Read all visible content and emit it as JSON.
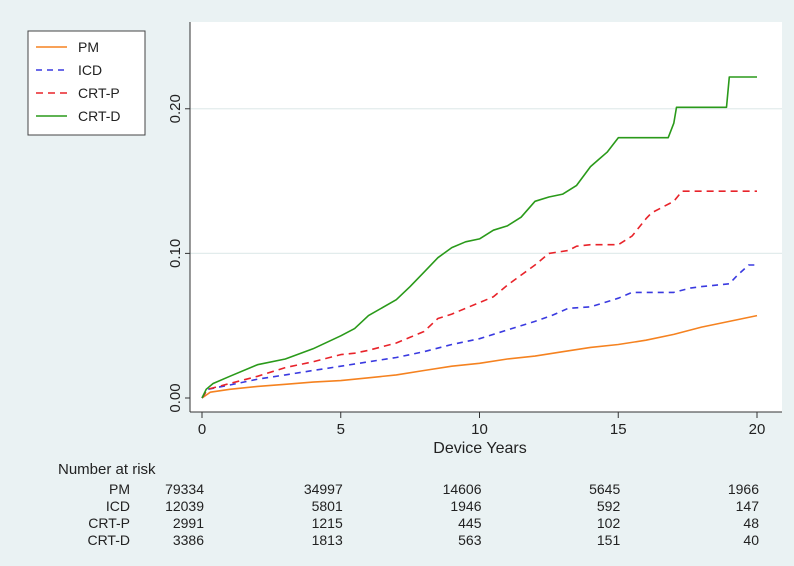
{
  "chart_data": {
    "type": "line",
    "title": "",
    "xlabel": "Device Years",
    "ylabel": "",
    "xlim": [
      0,
      20
    ],
    "ylim": [
      0,
      0.26
    ],
    "x_ticks": [
      0,
      5,
      10,
      15,
      20
    ],
    "x_tick_labels": [
      "0",
      "5",
      "10",
      "15",
      "20"
    ],
    "y_ticks": [
      0.0,
      0.1,
      0.2
    ],
    "y_tick_labels": [
      "0.00",
      "0.10",
      "0.20"
    ],
    "grid": "horizontal",
    "legend_position": "top-left",
    "series": [
      {
        "name": "PM",
        "color": "#f58220",
        "dash": "solid",
        "points": [
          [
            0,
            0
          ],
          [
            0.3,
            0.004
          ],
          [
            1,
            0.006
          ],
          [
            2,
            0.008
          ],
          [
            3,
            0.0095
          ],
          [
            4,
            0.011
          ],
          [
            5,
            0.012
          ],
          [
            6,
            0.014
          ],
          [
            7,
            0.016
          ],
          [
            8,
            0.019
          ],
          [
            9,
            0.022
          ],
          [
            10,
            0.024
          ],
          [
            11,
            0.027
          ],
          [
            12,
            0.029
          ],
          [
            13,
            0.032
          ],
          [
            14,
            0.035
          ],
          [
            15,
            0.037
          ],
          [
            16,
            0.04
          ],
          [
            17,
            0.044
          ],
          [
            18,
            0.049
          ],
          [
            19,
            0.053
          ],
          [
            20,
            0.057
          ]
        ]
      },
      {
        "name": "ICD",
        "color": "#3a3ae0",
        "dash": "6,5",
        "points": [
          [
            0,
            0
          ],
          [
            0.2,
            0.006
          ],
          [
            1,
            0.009
          ],
          [
            2,
            0.013
          ],
          [
            3,
            0.016
          ],
          [
            4,
            0.019
          ],
          [
            5,
            0.022
          ],
          [
            6,
            0.025
          ],
          [
            7,
            0.028
          ],
          [
            8,
            0.032
          ],
          [
            9,
            0.037
          ],
          [
            10,
            0.041
          ],
          [
            11,
            0.047
          ],
          [
            12,
            0.053
          ],
          [
            12.6,
            0.057
          ],
          [
            13.2,
            0.062
          ],
          [
            14,
            0.063
          ],
          [
            14.5,
            0.066
          ],
          [
            15,
            0.069
          ],
          [
            15.5,
            0.073
          ],
          [
            17,
            0.073
          ],
          [
            17.6,
            0.076
          ],
          [
            18,
            0.077
          ],
          [
            19,
            0.079
          ],
          [
            19.3,
            0.085
          ],
          [
            19.7,
            0.092
          ],
          [
            20,
            0.092
          ]
        ]
      },
      {
        "name": "CRT-P",
        "color": "#e8232a",
        "dash": "7,5",
        "points": [
          [
            0,
            0
          ],
          [
            0.2,
            0.006
          ],
          [
            1,
            0.01
          ],
          [
            2,
            0.015
          ],
          [
            3,
            0.021
          ],
          [
            4,
            0.025
          ],
          [
            5,
            0.03
          ],
          [
            5.5,
            0.031
          ],
          [
            6,
            0.033
          ],
          [
            7,
            0.038
          ],
          [
            7.5,
            0.042
          ],
          [
            8,
            0.046
          ],
          [
            8.5,
            0.055
          ],
          [
            9,
            0.058
          ],
          [
            9.5,
            0.062
          ],
          [
            10,
            0.066
          ],
          [
            10.5,
            0.07
          ],
          [
            11,
            0.078
          ],
          [
            11.5,
            0.085
          ],
          [
            12,
            0.092
          ],
          [
            12.5,
            0.1
          ],
          [
            13.2,
            0.102
          ],
          [
            13.5,
            0.105
          ],
          [
            14,
            0.106
          ],
          [
            15,
            0.106
          ],
          [
            15.5,
            0.112
          ],
          [
            16,
            0.124
          ],
          [
            16.2,
            0.128
          ],
          [
            17,
            0.136
          ],
          [
            17.3,
            0.143
          ],
          [
            20,
            0.143
          ]
        ]
      },
      {
        "name": "CRT-D",
        "color": "#2a9a1a",
        "dash": "solid",
        "points": [
          [
            0,
            0
          ],
          [
            0.15,
            0.006
          ],
          [
            0.4,
            0.01
          ],
          [
            1,
            0.015
          ],
          [
            2,
            0.023
          ],
          [
            3,
            0.027
          ],
          [
            4,
            0.034
          ],
          [
            5,
            0.043
          ],
          [
            5.5,
            0.048
          ],
          [
            6,
            0.057
          ],
          [
            7,
            0.068
          ],
          [
            7.5,
            0.077
          ],
          [
            8,
            0.087
          ],
          [
            8.5,
            0.097
          ],
          [
            9,
            0.104
          ],
          [
            9.5,
            0.108
          ],
          [
            10,
            0.11
          ],
          [
            10.5,
            0.116
          ],
          [
            11,
            0.119
          ],
          [
            11.5,
            0.125
          ],
          [
            12,
            0.136
          ],
          [
            12.5,
            0.139
          ],
          [
            13,
            0.141
          ],
          [
            13.5,
            0.147
          ],
          [
            14,
            0.16
          ],
          [
            14.3,
            0.165
          ],
          [
            14.6,
            0.17
          ],
          [
            15,
            0.18
          ],
          [
            16,
            0.18
          ],
          [
            16.8,
            0.18
          ],
          [
            17,
            0.19
          ],
          [
            17.1,
            0.201
          ],
          [
            18.9,
            0.201
          ],
          [
            19,
            0.222
          ],
          [
            20,
            0.222
          ]
        ]
      }
    ]
  },
  "risk_table": {
    "title": "Number at risk",
    "rows": [
      {
        "label": "PM",
        "values": [
          "79334",
          "34997",
          "14606",
          "5645",
          "1966"
        ]
      },
      {
        "label": "ICD",
        "values": [
          "12039",
          "5801",
          "1946",
          "592",
          "147"
        ]
      },
      {
        "label": "CRT-P",
        "values": [
          "2991",
          "1215",
          "445",
          "102",
          "48"
        ]
      },
      {
        "label": "CRT-D",
        "values": [
          "3386",
          "1813",
          "563",
          "151",
          "40"
        ]
      }
    ],
    "at_years": [
      0,
      5,
      10,
      15,
      20
    ]
  },
  "colors": {
    "background": "#eaf2f3",
    "plot_background": "#ffffff",
    "grid": "#e2ecec"
  }
}
